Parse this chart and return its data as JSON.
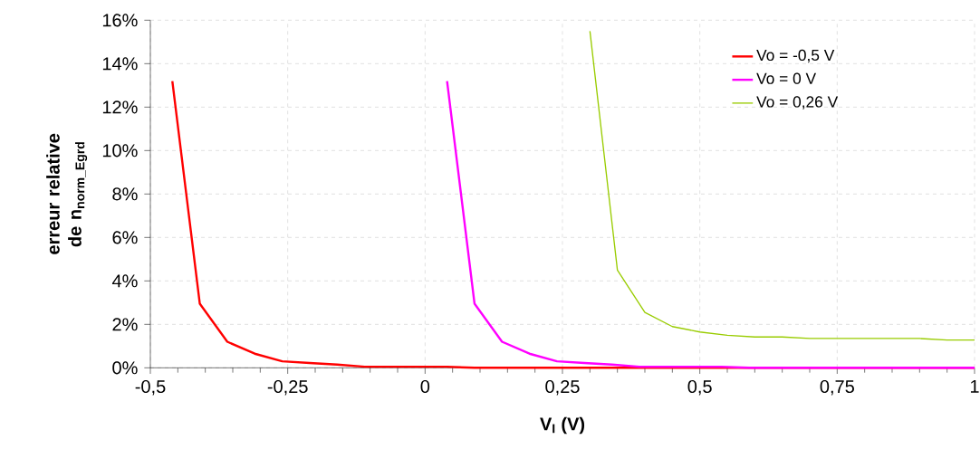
{
  "chart_data": {
    "type": "line",
    "xlabel": "V$_{I}$ (V)",
    "ylabel": "erreur relative de n$_{norm_Egrd}$",
    "xlim": [
      -0.5,
      1
    ],
    "ylim": [
      0,
      16
    ],
    "xticks": [
      {
        "value": -0.5,
        "label": "-0,5"
      },
      {
        "value": -0.25,
        "label": "-0,25"
      },
      {
        "value": 0,
        "label": "0"
      },
      {
        "value": 0.25,
        "label": "0,25"
      },
      {
        "value": 0.5,
        "label": "0,5"
      },
      {
        "value": 0.75,
        "label": "0,75"
      },
      {
        "value": 1,
        "label": "1"
      }
    ],
    "yticks": [
      {
        "value": 0,
        "label": "0%"
      },
      {
        "value": 2,
        "label": "2%"
      },
      {
        "value": 4,
        "label": "4%"
      },
      {
        "value": 6,
        "label": "6%"
      },
      {
        "value": 8,
        "label": "8%"
      },
      {
        "value": 10,
        "label": "10%"
      },
      {
        "value": 12,
        "label": "12%"
      },
      {
        "value": 14,
        "label": "14%"
      },
      {
        "value": 16,
        "label": "16%"
      }
    ],
    "grid": true,
    "legend": "top right",
    "marker": "none",
    "line_style": "solid",
    "series": [
      {
        "name": "Vo = -0,5 V",
        "color": "#ff0000",
        "x": [
          -0.46,
          -0.41,
          -0.36,
          -0.31,
          -0.26,
          -0.21,
          -0.16,
          -0.11,
          0.04,
          0.09,
          1.0
        ],
        "values": [
          13.2,
          2.95,
          1.2,
          0.65,
          0.3,
          0.22,
          0.15,
          0.05,
          0.05,
          0,
          0
        ]
      },
      {
        "name": "Vo = 0 V",
        "color": "#ff00ff",
        "x": [
          0.04,
          0.09,
          0.14,
          0.19,
          0.24,
          0.29,
          0.34,
          0.39,
          0.54,
          0.59,
          1.0
        ],
        "values": [
          13.2,
          2.95,
          1.2,
          0.65,
          0.3,
          0.22,
          0.15,
          0.05,
          0.05,
          0,
          0
        ]
      },
      {
        "name": "Vo = 0,26 V",
        "color": "#99cc00",
        "x": [
          0.3,
          0.35,
          0.4,
          0.45,
          0.5,
          0.55,
          0.6,
          0.65,
          0.7,
          0.9,
          0.95,
          1.0
        ],
        "values": [
          15.5,
          4.5,
          2.55,
          1.9,
          1.65,
          1.5,
          1.42,
          1.42,
          1.35,
          1.35,
          1.28,
          1.28
        ]
      }
    ]
  }
}
